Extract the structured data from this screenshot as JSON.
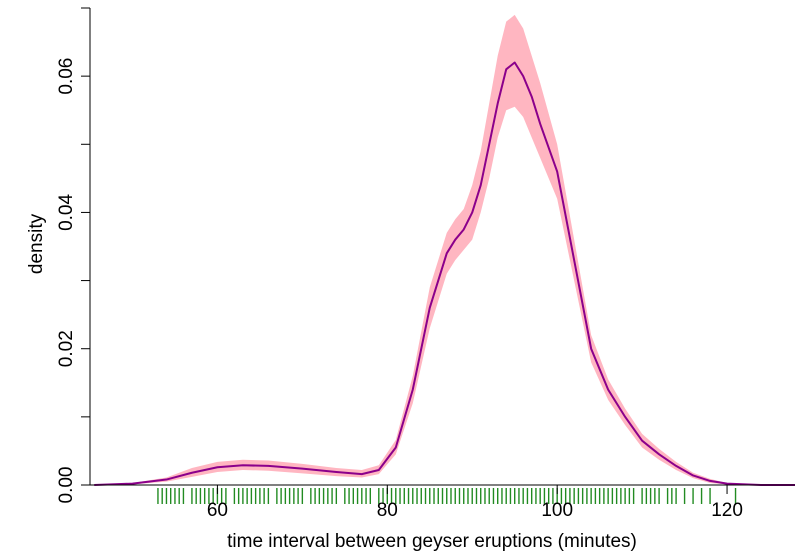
{
  "chart_data": {
    "type": "area",
    "title": "",
    "xlabel": "time interval between geyser eruptions (minutes)",
    "ylabel": "density",
    "xlim": [
      45,
      128
    ],
    "ylim": [
      0,
      0.07
    ],
    "x_ticks": [
      60,
      80,
      100,
      120
    ],
    "y_ticks": [
      0.0,
      0.02,
      0.04,
      0.06
    ],
    "x_tick_labels": [
      "60",
      "80",
      "100",
      "120"
    ],
    "y_tick_labels": [
      "0.00",
      "0.02",
      "0.04",
      "0.06"
    ],
    "grid": false,
    "legend": "none",
    "colors": {
      "line": "#8b008b",
      "band": "#ffb6c1",
      "rug": "#228b22",
      "axis": "#000000"
    },
    "series": [
      {
        "x": [
          45.5,
          50,
          54,
          57,
          60,
          63,
          66,
          70,
          74,
          77,
          79,
          81,
          83,
          85,
          87,
          88,
          89,
          90,
          91,
          92,
          93,
          94,
          95,
          96,
          97,
          98,
          100,
          102,
          104,
          106,
          108,
          110,
          112,
          114,
          116,
          118,
          120,
          124,
          128
        ],
        "y": [
          0.0,
          0.0002,
          0.0008,
          0.0018,
          0.0026,
          0.0029,
          0.0028,
          0.0024,
          0.0019,
          0.0016,
          0.0022,
          0.0055,
          0.014,
          0.026,
          0.034,
          0.036,
          0.0375,
          0.04,
          0.044,
          0.05,
          0.056,
          0.061,
          0.062,
          0.06,
          0.057,
          0.053,
          0.046,
          0.033,
          0.02,
          0.014,
          0.01,
          0.0065,
          0.0045,
          0.0028,
          0.0014,
          0.0006,
          0.0002,
          0.0,
          0.0
        ],
        "lower": [
          0.0,
          0.0001,
          0.0005,
          0.0012,
          0.0019,
          0.0022,
          0.0021,
          0.0017,
          0.0013,
          0.0011,
          0.0016,
          0.0045,
          0.012,
          0.023,
          0.031,
          0.033,
          0.0345,
          0.036,
          0.04,
          0.045,
          0.051,
          0.055,
          0.0555,
          0.054,
          0.051,
          0.048,
          0.042,
          0.03,
          0.018,
          0.0125,
          0.0088,
          0.0055,
          0.0037,
          0.0022,
          0.001,
          0.0003,
          0.0001,
          0.0,
          0.0
        ],
        "upper": [
          0.0,
          0.0003,
          0.0011,
          0.0025,
          0.0034,
          0.0037,
          0.0036,
          0.0031,
          0.0025,
          0.0022,
          0.0029,
          0.0066,
          0.016,
          0.029,
          0.037,
          0.039,
          0.0405,
          0.044,
          0.049,
          0.056,
          0.063,
          0.068,
          0.069,
          0.067,
          0.063,
          0.059,
          0.05,
          0.036,
          0.022,
          0.0155,
          0.0112,
          0.0075,
          0.0053,
          0.0034,
          0.0018,
          0.0009,
          0.0003,
          0.0,
          0.0
        ]
      }
    ],
    "rug": [
      53,
      53.5,
      54,
      54.5,
      55,
      55.5,
      56,
      57,
      57.5,
      58,
      58.5,
      59,
      59.5,
      60,
      60.5,
      61,
      62,
      62.5,
      63,
      63.5,
      64,
      64.5,
      65,
      65.5,
      66,
      67,
      67.5,
      68,
      68.5,
      69,
      69.5,
      70,
      71,
      71.5,
      72,
      72.5,
      73,
      73.5,
      74,
      75,
      75.5,
      76,
      76.5,
      77,
      77.5,
      78,
      79,
      79.5,
      80,
      80.5,
      81,
      81.5,
      82,
      82.5,
      83,
      83.5,
      84,
      84.5,
      85,
      85.5,
      86,
      86.5,
      87,
      87.5,
      88,
      88.5,
      89,
      89.5,
      90,
      90.5,
      91,
      91.5,
      92,
      92.5,
      93,
      93.5,
      94,
      94.5,
      95,
      95.5,
      96,
      96.5,
      97,
      97.5,
      98,
      98.5,
      99,
      99.5,
      100,
      100.5,
      101,
      101.5,
      102,
      102.5,
      103,
      103.5,
      104,
      104.5,
      105,
      105.5,
      106,
      106.5,
      107,
      107.5,
      108,
      108.5,
      109,
      110,
      110.5,
      111,
      111.5,
      112,
      113,
      113.5,
      114,
      115,
      116,
      117,
      118,
      121
    ]
  }
}
